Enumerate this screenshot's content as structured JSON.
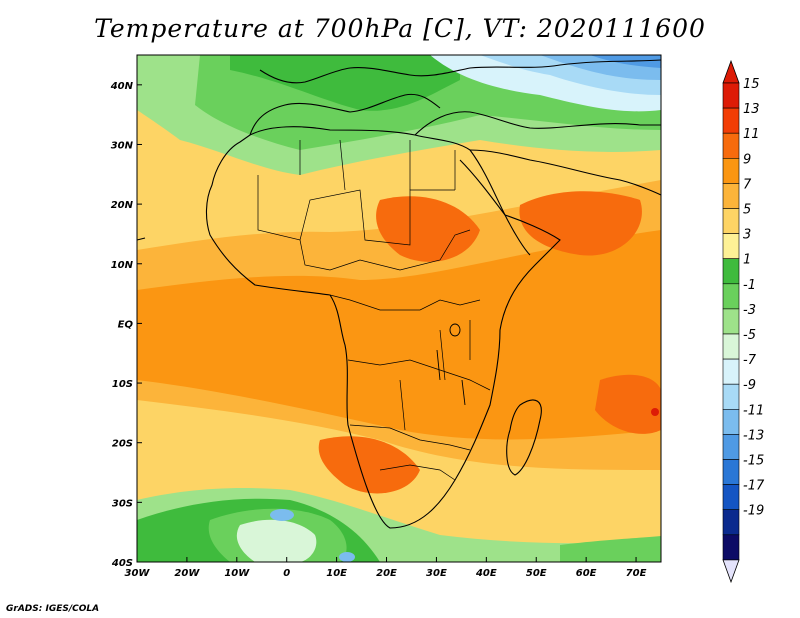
{
  "title": "Temperature at 700hPa [C], VT: 2020111600",
  "credit": "GrADS: IGES/COLA",
  "map": {
    "lon_range": [
      -30,
      75
    ],
    "lat_range": [
      -40,
      45
    ],
    "x_ticks": [
      "30W",
      "20W",
      "10W",
      "0",
      "10E",
      "20E",
      "30E",
      "40E",
      "50E",
      "60E",
      "70E"
    ],
    "y_ticks": [
      "40N",
      "30N",
      "20N",
      "10N",
      "EQ",
      "10S",
      "20S",
      "30S",
      "40S"
    ]
  },
  "colorbar": {
    "labels": [
      "15",
      "13",
      "11",
      "9",
      "7",
      "5",
      "3",
      "1",
      "-1",
      "-3",
      "-5",
      "-7",
      "-9",
      "-11",
      "-13",
      "-15",
      "-17",
      "-19"
    ],
    "colors": [
      "#dd1b06",
      "#f23d05",
      "#f76b0d",
      "#fb9612",
      "#fcb43a",
      "#fdd465",
      "#fef196",
      "#3fbb3d",
      "#6ad05c",
      "#9ee28a",
      "#d9f6d8",
      "#d8f3fb",
      "#a8daf6",
      "#7bbcee",
      "#4f9ae4",
      "#2a77d6",
      "#1455c3",
      "#0a2a8e",
      "#0c0b66"
    ],
    "top_arrow_color": "#dd1b06",
    "bottom_arrow_color": "#e4e3fb"
  }
}
